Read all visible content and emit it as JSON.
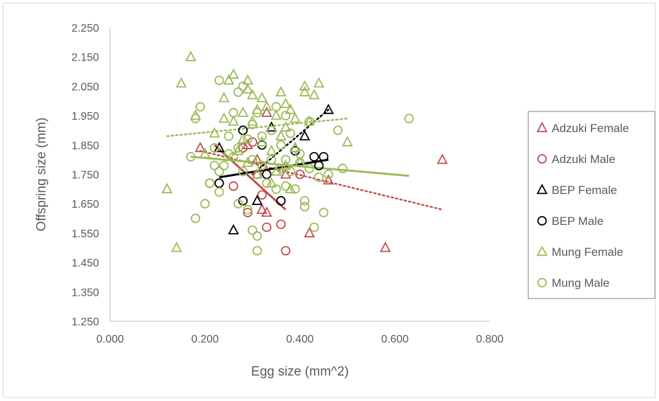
{
  "chart_data": {
    "type": "scatter",
    "title": "",
    "xlabel": "Egg size (mm^2)",
    "ylabel": "Offspring size (mm)",
    "xlim": [
      0,
      0.8
    ],
    "ylim": [
      1.25,
      2.25
    ],
    "xticks": [
      "0.000",
      "0.200",
      "0.400",
      "0.600",
      "0.800"
    ],
    "yticks": [
      "1.250",
      "1.350",
      "1.450",
      "1.550",
      "1.650",
      "1.750",
      "1.850",
      "1.950",
      "2.050",
      "2.150",
      "2.250"
    ],
    "grid": false,
    "legend_position": "right",
    "series": [
      {
        "name": "Adzuki Female",
        "marker": "triangle",
        "color": "#c0504d",
        "trendline": {
          "style": "dotted",
          "x": [
            0.19,
            0.7
          ],
          "y": [
            1.83,
            1.63
          ]
        },
        "points": [
          [
            0.19,
            1.84
          ],
          [
            0.29,
            1.85
          ],
          [
            0.31,
            1.8
          ],
          [
            0.32,
            1.63
          ],
          [
            0.33,
            1.62
          ],
          [
            0.33,
            1.96
          ],
          [
            0.35,
            1.76
          ],
          [
            0.37,
            1.75
          ],
          [
            0.42,
            1.55
          ],
          [
            0.46,
            1.73
          ],
          [
            0.58,
            1.5
          ],
          [
            0.7,
            1.8
          ]
        ]
      },
      {
        "name": "Adzuki Male",
        "marker": "circle",
        "color": "#c0504d",
        "trendline": {
          "style": "solid",
          "x": [
            0.22,
            0.37
          ],
          "y": [
            1.85,
            1.63
          ]
        },
        "points": [
          [
            0.21,
            1.72
          ],
          [
            0.26,
            1.71
          ],
          [
            0.28,
            1.84
          ],
          [
            0.29,
            1.62
          ],
          [
            0.3,
            1.86
          ],
          [
            0.31,
            1.75
          ],
          [
            0.32,
            1.68
          ],
          [
            0.33,
            1.57
          ],
          [
            0.36,
            1.58
          ],
          [
            0.37,
            1.49
          ],
          [
            0.4,
            1.75
          ]
        ]
      },
      {
        "name": "BEP Female",
        "marker": "triangle",
        "color": "#000000",
        "trendline": {
          "style": "dotted",
          "x": [
            0.3,
            0.46
          ],
          "y": [
            1.75,
            1.97
          ]
        },
        "points": [
          [
            0.23,
            1.84
          ],
          [
            0.26,
            1.56
          ],
          [
            0.31,
            1.66
          ],
          [
            0.34,
            1.91
          ],
          [
            0.39,
            1.84
          ],
          [
            0.41,
            1.88
          ],
          [
            0.46,
            1.97
          ]
        ]
      },
      {
        "name": "BEP Male",
        "marker": "circle",
        "color": "#000000",
        "trendline": {
          "style": "solid",
          "x": [
            0.23,
            0.46
          ],
          "y": [
            1.74,
            1.8
          ]
        },
        "points": [
          [
            0.23,
            1.72
          ],
          [
            0.28,
            1.9
          ],
          [
            0.28,
            1.66
          ],
          [
            0.32,
            1.85
          ],
          [
            0.33,
            1.75
          ],
          [
            0.36,
            1.66
          ],
          [
            0.39,
            1.83
          ],
          [
            0.43,
            1.81
          ],
          [
            0.44,
            1.78
          ],
          [
            0.45,
            1.81
          ]
        ]
      },
      {
        "name": "Mung Female",
        "marker": "triangle",
        "color": "#9bbb59",
        "trendline": {
          "style": "dotted",
          "x": [
            0.12,
            0.5
          ],
          "y": [
            1.88,
            1.94
          ]
        },
        "points": [
          [
            0.12,
            1.7
          ],
          [
            0.14,
            1.5
          ],
          [
            0.15,
            2.06
          ],
          [
            0.17,
            2.15
          ],
          [
            0.18,
            1.95
          ],
          [
            0.2,
            1.82
          ],
          [
            0.22,
            1.89
          ],
          [
            0.24,
            2.01
          ],
          [
            0.24,
            1.94
          ],
          [
            0.25,
            2.07
          ],
          [
            0.26,
            2.09
          ],
          [
            0.26,
            1.93
          ],
          [
            0.27,
            1.83
          ],
          [
            0.28,
            1.96
          ],
          [
            0.28,
            1.87
          ],
          [
            0.29,
            2.07
          ],
          [
            0.29,
            2.04
          ],
          [
            0.29,
            1.79
          ],
          [
            0.3,
            2.02
          ],
          [
            0.3,
            1.93
          ],
          [
            0.31,
            1.97
          ],
          [
            0.31,
            1.75
          ],
          [
            0.32,
            2.01
          ],
          [
            0.32,
            1.86
          ],
          [
            0.33,
            1.98
          ],
          [
            0.34,
            1.83
          ],
          [
            0.34,
            1.72
          ],
          [
            0.35,
            1.95
          ],
          [
            0.35,
            1.76
          ],
          [
            0.36,
            2.03
          ],
          [
            0.36,
            1.88
          ],
          [
            0.37,
            1.99
          ],
          [
            0.37,
            1.91
          ],
          [
            0.37,
            1.78
          ],
          [
            0.38,
            1.97
          ],
          [
            0.38,
            1.7
          ],
          [
            0.39,
            1.94
          ],
          [
            0.39,
            1.84
          ],
          [
            0.4,
            1.79
          ],
          [
            0.41,
            2.03
          ],
          [
            0.41,
            2.05
          ],
          [
            0.42,
            1.93
          ],
          [
            0.43,
            2.02
          ],
          [
            0.44,
            2.06
          ],
          [
            0.5,
            1.86
          ]
        ]
      },
      {
        "name": "Mung Male",
        "marker": "circle",
        "color": "#9bbb59",
        "trendline": {
          "style": "solid",
          "x": [
            0.17,
            0.63
          ],
          "y": [
            1.81,
            1.745
          ]
        },
        "points": [
          [
            0.17,
            1.81
          ],
          [
            0.18,
            1.94
          ],
          [
            0.18,
            1.6
          ],
          [
            0.19,
            1.98
          ],
          [
            0.2,
            1.65
          ],
          [
            0.21,
            1.72
          ],
          [
            0.22,
            1.78
          ],
          [
            0.22,
            1.84
          ],
          [
            0.23,
            2.07
          ],
          [
            0.23,
            1.76
          ],
          [
            0.23,
            1.69
          ],
          [
            0.24,
            1.78
          ],
          [
            0.25,
            1.88
          ],
          [
            0.25,
            1.82
          ],
          [
            0.26,
            1.96
          ],
          [
            0.26,
            1.81
          ],
          [
            0.27,
            2.03
          ],
          [
            0.27,
            1.84
          ],
          [
            0.27,
            1.65
          ],
          [
            0.28,
            2.05
          ],
          [
            0.28,
            1.76
          ],
          [
            0.29,
            1.87
          ],
          [
            0.29,
            1.63
          ],
          [
            0.3,
            1.92
          ],
          [
            0.3,
            1.8
          ],
          [
            0.3,
            1.56
          ],
          [
            0.31,
            1.96
          ],
          [
            0.31,
            1.49
          ],
          [
            0.31,
            1.54
          ],
          [
            0.32,
            1.88
          ],
          [
            0.32,
            1.78
          ],
          [
            0.33,
            1.72
          ],
          [
            0.34,
            1.9
          ],
          [
            0.34,
            1.8
          ],
          [
            0.35,
            1.98
          ],
          [
            0.35,
            1.7
          ],
          [
            0.36,
            1.85
          ],
          [
            0.36,
            1.77
          ],
          [
            0.37,
            1.95
          ],
          [
            0.37,
            1.8
          ],
          [
            0.37,
            1.71
          ],
          [
            0.38,
            1.89
          ],
          [
            0.38,
            1.76
          ],
          [
            0.39,
            1.7
          ],
          [
            0.4,
            1.82
          ],
          [
            0.4,
            1.79
          ],
          [
            0.41,
            1.66
          ],
          [
            0.41,
            1.64
          ],
          [
            0.42,
            1.93
          ],
          [
            0.42,
            1.77
          ],
          [
            0.43,
            1.57
          ],
          [
            0.44,
            1.74
          ],
          [
            0.45,
            1.62
          ],
          [
            0.46,
            1.75
          ],
          [
            0.48,
            1.9
          ],
          [
            0.49,
            1.77
          ],
          [
            0.63,
            1.94
          ]
        ]
      }
    ]
  }
}
